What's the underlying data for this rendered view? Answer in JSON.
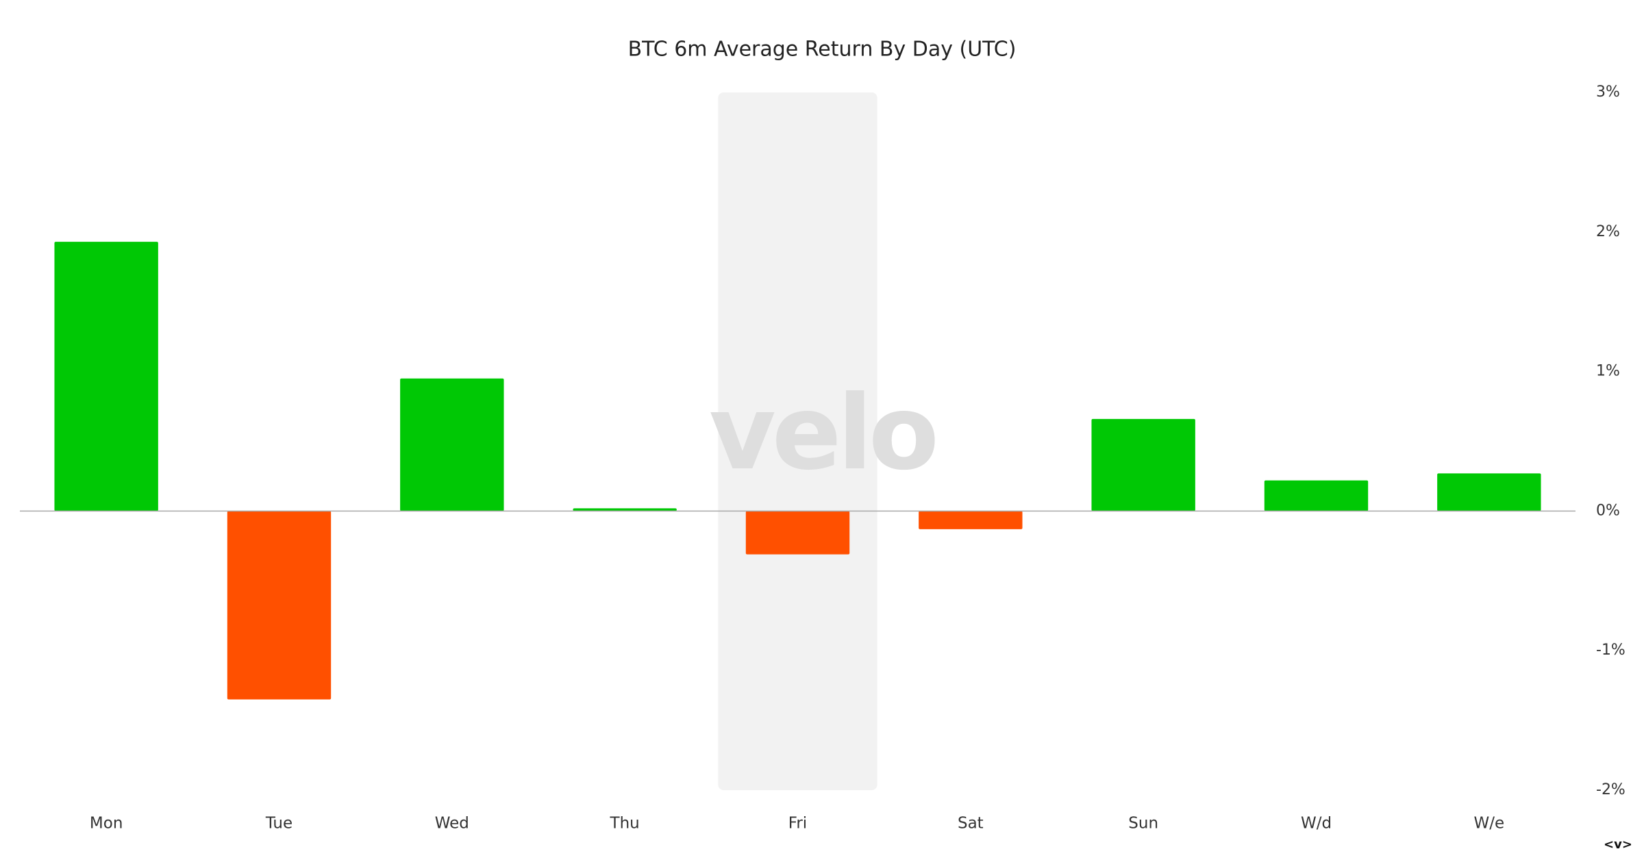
{
  "chart_data": {
    "type": "bar",
    "title": "BTC 6m Average Return By Day (UTC)",
    "categories": [
      "Mon",
      "Tue",
      "Wed",
      "Thu",
      "Fri",
      "Sat",
      "Sun",
      "W/d",
      "W/e"
    ],
    "values": [
      1.93,
      -1.35,
      0.95,
      0.02,
      -0.31,
      -0.13,
      0.66,
      0.22,
      0.27
    ],
    "positive_color": "#00c805",
    "negative_color": "#ff5000",
    "highlight": "Fri",
    "ylim": [
      -2,
      3
    ],
    "yticks": [
      {
        "value": -2,
        "label": "-2%"
      },
      {
        "value": -1,
        "label": "-1%"
      },
      {
        "value": 0,
        "label": "0%"
      },
      {
        "value": 1,
        "label": "1%"
      },
      {
        "value": 2,
        "label": "2%"
      },
      {
        "value": 3,
        "label": "3%"
      }
    ],
    "grid": false,
    "watermark": "velo",
    "footer_mark": "<v>"
  }
}
